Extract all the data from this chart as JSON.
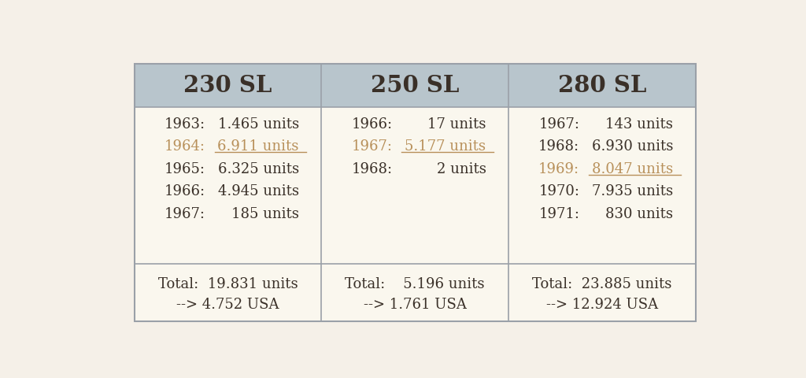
{
  "bg_color": "#f5f0e8",
  "header_bg": "#b8c5cc",
  "body_bg": "#faf7ee",
  "border_color": "#9aA0a8",
  "normal_color": "#3a3028",
  "highlight_color": "#b8905a",
  "title_fontsize": 21,
  "label_fontsize": 13,
  "footer_fontsize": 13,
  "columns": [
    "230 SL",
    "250 SL",
    "280 SL"
  ],
  "col230": {
    "rows": [
      {
        "year": "1963:",
        "value": "1.465 units",
        "highlight": false
      },
      {
        "year": "1964:",
        "value": "6.911 units",
        "highlight": true
      },
      {
        "year": "1965:",
        "value": "6.325 units",
        "highlight": false
      },
      {
        "year": "1966:",
        "value": "4.945 units",
        "highlight": false
      },
      {
        "year": "1967:",
        "value": "185 units",
        "highlight": false
      }
    ],
    "total": "Total:  19.831 units",
    "usa": "--> 4.752 USA"
  },
  "col250": {
    "rows": [
      {
        "year": "1966:",
        "value": "17 units",
        "highlight": false
      },
      {
        "year": "1967:",
        "value": "5.177 units",
        "highlight": true
      },
      {
        "year": "1968:",
        "value": "2 units",
        "highlight": false
      }
    ],
    "total": "Total:    5.196 units",
    "usa": "--> 1.761 USA"
  },
  "col280": {
    "rows": [
      {
        "year": "1967:",
        "value": "143 units",
        "highlight": false
      },
      {
        "year": "1968:",
        "value": "6.930 units",
        "highlight": false
      },
      {
        "year": "1969:",
        "value": "8.047 units",
        "highlight": true
      },
      {
        "year": "1970:",
        "value": "7.935 units",
        "highlight": false
      },
      {
        "year": "1971:",
        "value": "830 units",
        "highlight": false
      }
    ],
    "total": "Total:  23.885 units",
    "usa": "--> 12.924 USA"
  }
}
